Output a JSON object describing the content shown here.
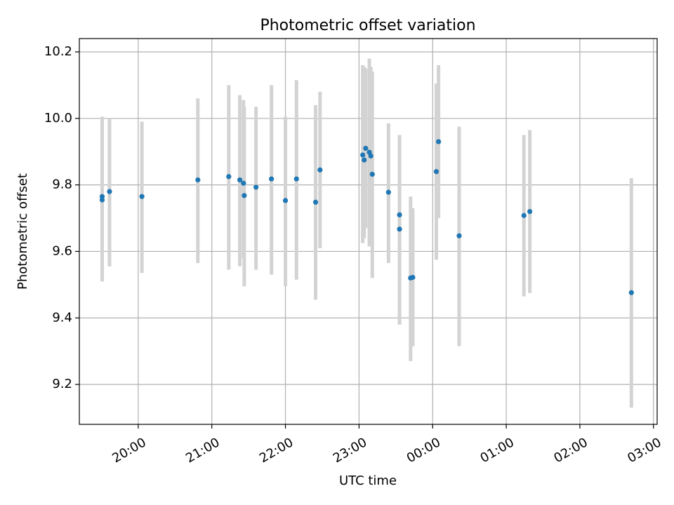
{
  "chart_data": {
    "type": "scatter",
    "title": "Photometric offset variation",
    "xlabel": "UTC time",
    "ylabel": "Photometric offset",
    "x_unit": "hours since 00:00 UTC (negative = previous day)",
    "xlim": [
      -4.8,
      3.05
    ],
    "ylim": [
      9.08,
      10.24
    ],
    "grid": true,
    "x_ticks": [
      {
        "value": -4,
        "label": "20:00"
      },
      {
        "value": -3,
        "label": "21:00"
      },
      {
        "value": -2,
        "label": "22:00"
      },
      {
        "value": -1,
        "label": "23:00"
      },
      {
        "value": 0,
        "label": "00:00"
      },
      {
        "value": 1,
        "label": "01:00"
      },
      {
        "value": 2,
        "label": "02:00"
      },
      {
        "value": 3,
        "label": "03:00"
      }
    ],
    "y_ticks": [
      {
        "value": 9.2,
        "label": "9.2"
      },
      {
        "value": 9.4,
        "label": "9.4"
      },
      {
        "value": 9.6,
        "label": "9.6"
      },
      {
        "value": 9.8,
        "label": "9.8"
      },
      {
        "value": 10.0,
        "label": "10.0"
      },
      {
        "value": 10.2,
        "label": "10.2"
      }
    ],
    "colors": {
      "point": "#1f77b4",
      "errorbar": "#d3d3d3",
      "grid": "#b0b0b0"
    },
    "points": [
      {
        "x": -4.49,
        "y": 9.765,
        "low": 9.51,
        "high": 10.005
      },
      {
        "x": -4.49,
        "y": 9.755,
        "low": 9.51,
        "high": 10.005
      },
      {
        "x": -4.39,
        "y": 9.78,
        "low": 9.555,
        "high": 10.0
      },
      {
        "x": -3.95,
        "y": 9.765,
        "low": 9.535,
        "high": 9.99
      },
      {
        "x": -3.19,
        "y": 9.815,
        "low": 9.565,
        "high": 10.06
      },
      {
        "x": -2.77,
        "y": 9.825,
        "low": 9.545,
        "high": 10.1
      },
      {
        "x": -2.62,
        "y": 9.815,
        "low": 9.555,
        "high": 10.07
      },
      {
        "x": -2.57,
        "y": 9.805,
        "low": 9.58,
        "high": 10.055
      },
      {
        "x": -2.56,
        "y": 9.768,
        "low": 9.495,
        "high": 10.035
      },
      {
        "x": -2.4,
        "y": 9.793,
        "low": 9.545,
        "high": 10.035
      },
      {
        "x": -2.19,
        "y": 9.818,
        "low": 9.53,
        "high": 10.1
      },
      {
        "x": -2.0,
        "y": 9.753,
        "low": 9.495,
        "high": 10.005
      },
      {
        "x": -1.85,
        "y": 9.818,
        "low": 9.515,
        "high": 10.115
      },
      {
        "x": -1.59,
        "y": 9.748,
        "low": 9.455,
        "high": 10.04
      },
      {
        "x": -1.53,
        "y": 9.845,
        "low": 9.61,
        "high": 10.08
      },
      {
        "x": -0.95,
        "y": 9.89,
        "low": 9.625,
        "high": 10.16
      },
      {
        "x": -0.93,
        "y": 9.875,
        "low": 9.64,
        "high": 10.155
      },
      {
        "x": -0.91,
        "y": 9.91,
        "low": 9.67,
        "high": 10.15
      },
      {
        "x": -0.86,
        "y": 9.898,
        "low": 9.615,
        "high": 10.18
      },
      {
        "x": -0.84,
        "y": 9.887,
        "low": 9.635,
        "high": 10.155
      },
      {
        "x": -0.82,
        "y": 9.832,
        "low": 9.52,
        "high": 10.14
      },
      {
        "x": -0.6,
        "y": 9.778,
        "low": 9.565,
        "high": 9.985
      },
      {
        "x": -0.45,
        "y": 9.71,
        "low": 9.38,
        "high": 9.95
      },
      {
        "x": -0.45,
        "y": 9.667,
        "low": 9.38,
        "high": 9.95
      },
      {
        "x": -0.3,
        "y": 9.52,
        "low": 9.27,
        "high": 9.765
      },
      {
        "x": -0.27,
        "y": 9.522,
        "low": 9.315,
        "high": 9.73
      },
      {
        "x": 0.05,
        "y": 9.84,
        "low": 9.575,
        "high": 10.105
      },
      {
        "x": 0.08,
        "y": 9.93,
        "low": 9.7,
        "high": 10.16
      },
      {
        "x": 0.36,
        "y": 9.647,
        "low": 9.315,
        "high": 9.975
      },
      {
        "x": 1.24,
        "y": 9.708,
        "low": 9.465,
        "high": 9.95
      },
      {
        "x": 1.32,
        "y": 9.72,
        "low": 9.475,
        "high": 9.965
      },
      {
        "x": 2.7,
        "y": 9.476,
        "low": 9.13,
        "high": 9.82
      }
    ]
  }
}
